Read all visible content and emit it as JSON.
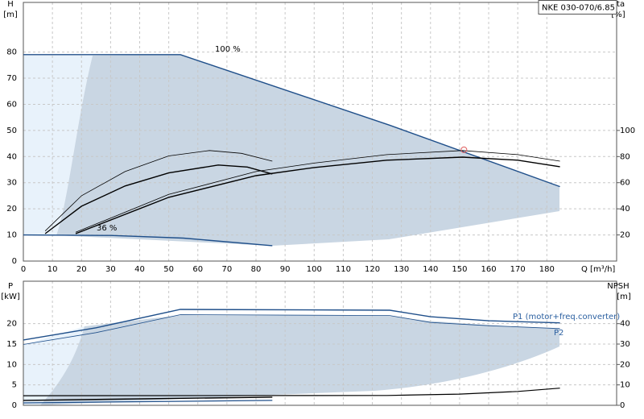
{
  "chart_data": [
    {
      "type": "line",
      "title": "NKE 030-070/6.85",
      "xlabel": "Q [m³/h]",
      "ylabel": "H",
      "yunit": "[m]",
      "y2label": "eta",
      "y2unit": "[%]",
      "xlim": [
        0,
        204
      ],
      "xticks": [
        0,
        10,
        20,
        30,
        40,
        50,
        60,
        70,
        80,
        90,
        100,
        110,
        120,
        130,
        140,
        150,
        160,
        170,
        180
      ],
      "ylim": [
        0,
        99
      ],
      "yticks": [
        0,
        10,
        20,
        30,
        40,
        50,
        60,
        70,
        80
      ],
      "y2lim": [
        0,
        198
      ],
      "y2ticks": [
        20,
        40,
        60,
        80,
        100
      ],
      "grid": true,
      "annotations": [
        "100 %",
        "36 %"
      ],
      "annotation_color": "#000000",
      "series": [
        {
          "color": "#1f4f8a",
          "width": 1.4,
          "x": [
            0,
            54,
            126,
            184.5
          ],
          "values": [
            79,
            79,
            52,
            28.5
          ]
        },
        {
          "color": "#1f4f8a",
          "width": 1.4,
          "x": [
            0,
            30,
            55,
            85.6
          ],
          "values": [
            10,
            9.8,
            8.8,
            5.9
          ]
        },
        {
          "color": "#000000",
          "width": 0.8,
          "axis": "y2",
          "x": [
            7.5,
            20,
            35,
            50,
            64,
            75,
            85.6
          ],
          "values": [
            23,
            50,
            68.5,
            80.5,
            84.6,
            82.5,
            76.5
          ]
        },
        {
          "color": "#000000",
          "width": 1.4,
          "axis": "y2",
          "x": [
            7.5,
            20,
            35,
            50,
            67,
            77,
            85.6
          ],
          "values": [
            21,
            42,
            57.5,
            67.5,
            73.5,
            72,
            66.7
          ]
        },
        {
          "color": "#000000",
          "width": 0.8,
          "axis": "y2",
          "x": [
            18,
            50,
            80,
            100,
            125,
            151,
            170,
            184.5
          ],
          "values": [
            22,
            51,
            68.5,
            75,
            81.5,
            84.6,
            81.5,
            76.5
          ]
        },
        {
          "color": "#000000",
          "width": 1.4,
          "axis": "y2",
          "x": [
            18,
            50,
            80,
            100,
            125,
            151,
            170,
            184.5
          ],
          "values": [
            21,
            48.8,
            65.4,
            71.6,
            77.2,
            79.6,
            77.2,
            72.2
          ]
        }
      ],
      "point": {
        "x": 151.5,
        "y": 42.6,
        "color": "#e06060"
      }
    },
    {
      "type": "line",
      "ylabel": "P",
      "yunit": "[kW]",
      "y2label": "NPSH",
      "y2unit": "[m]",
      "xlim": [
        0,
        204
      ],
      "ylim": [
        0,
        30.4
      ],
      "yticks": [
        0,
        5,
        10,
        15,
        20
      ],
      "y2lim": [
        0,
        60.8
      ],
      "y2ticks": [
        0,
        10,
        20,
        30,
        40
      ],
      "grid": true,
      "annotations": [
        "P1 (motor+freq.converter)",
        "P2"
      ],
      "annotation_color": "#2a5fa0",
      "series": [
        {
          "color": "#1f4f8a",
          "width": 1.4,
          "x": [
            0,
            25,
            54,
            126,
            140,
            160,
            184.5
          ],
          "values": [
            16,
            19,
            23.5,
            23.3,
            21.7,
            20.7,
            20.2
          ]
        },
        {
          "color": "#1f4f8a",
          "width": 0.8,
          "x": [
            0,
            25,
            54,
            126,
            140,
            160,
            184.5
          ],
          "values": [
            14.9,
            17.8,
            22.2,
            22,
            20.3,
            19.5,
            18.8
          ]
        },
        {
          "color": "#000000",
          "width": 1.2,
          "axis": "y2",
          "x": [
            0,
            125,
            150,
            170,
            184.5
          ],
          "values": [
            4.7,
            4.8,
            5.5,
            6.8,
            8.4
          ]
        },
        {
          "color": "#000000",
          "width": 1.4,
          "x": [
            0,
            85.6
          ],
          "values": [
            1.2,
            2.0
          ]
        },
        {
          "color": "#1f4f8a",
          "width": 1.2,
          "x": [
            0,
            85.6
          ],
          "values": [
            0.6,
            1.2
          ]
        }
      ]
    }
  ]
}
